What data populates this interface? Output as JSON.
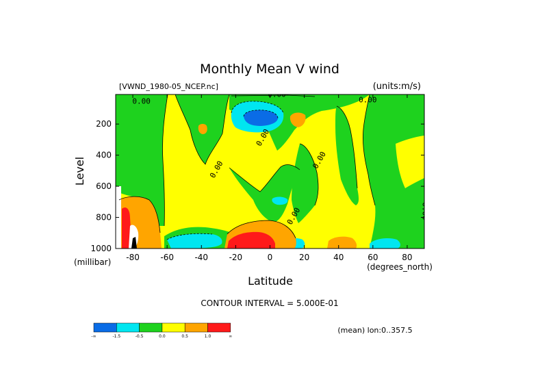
{
  "chart_data": {
    "type": "heatmap",
    "title": "Monthly Mean V wind",
    "dataset_label": "[VWND_1980-05_NCEP.nc]",
    "units_label": "(units:m/s)",
    "xlabel": "Latitude",
    "x_units": "(degrees_north)",
    "ylabel": "Level",
    "y_units": "(millibar)",
    "xlim": [
      -90,
      90
    ],
    "ylim": [
      1000,
      10
    ],
    "y_reversed": true,
    "x_ticks": [
      {
        "value": -80,
        "label": "-80"
      },
      {
        "value": -60,
        "label": "-60"
      },
      {
        "value": -40,
        "label": "-40"
      },
      {
        "value": -20,
        "label": "-20"
      },
      {
        "value": 0,
        "label": "0"
      },
      {
        "value": 20,
        "label": "20"
      },
      {
        "value": 40,
        "label": "40"
      },
      {
        "value": 60,
        "label": "60"
      },
      {
        "value": 80,
        "label": "80"
      }
    ],
    "y_ticks": [
      {
        "value": 200,
        "label": "200"
      },
      {
        "value": 400,
        "label": "400"
      },
      {
        "value": 600,
        "label": "600"
      },
      {
        "value": 800,
        "label": "800"
      },
      {
        "value": 1000,
        "label": "1000"
      }
    ],
    "contour_interval_label": "CONTOUR INTERVAL = 5.000E-01",
    "mean_label": "(mean) lon:0..357.5",
    "contour_labels": [
      {
        "text": "0.00",
        "lat": 4,
        "lev": 25
      },
      {
        "text": "0.00",
        "lat": -75,
        "lev": 70
      },
      {
        "text": "0.00",
        "lat": 57,
        "lev": 60
      },
      {
        "text": "0.00",
        "lat": -3,
        "lev": 295
      },
      {
        "text": "0.00",
        "lat": -30,
        "lev": 500
      },
      {
        "text": "0.00",
        "lat": 30,
        "lev": 440
      },
      {
        "text": "0.00",
        "lat": 15,
        "lev": 800
      },
      {
        "text": "0.00",
        "lat": 89,
        "lev": 760
      }
    ],
    "legend": {
      "bins": [
        {
          "color": "#0a6ce6",
          "label": "-∞"
        },
        {
          "color": "#00e6f0",
          "label": "-1.5"
        },
        {
          "color": "#1ed21e",
          "label": "-0.5"
        },
        {
          "color": "#ffff00",
          "label": "0.0"
        },
        {
          "color": "#ffa500",
          "label": "0.5"
        },
        {
          "color": "#ff1a1a",
          "label": "1.0"
        }
      ],
      "end_label": "∞"
    },
    "regions": [
      {
        "level": "positive",
        "color": "#ffff00",
        "description": "background"
      },
      {
        "level": "negative",
        "color": "#1ed21e",
        "lat": [
          -85,
          -62
        ],
        "lev": [
          20,
          600
        ]
      },
      {
        "level": "negative",
        "color": "#1ed21e",
        "lat": [
          -44,
          -22
        ],
        "lev": [
          20,
          250
        ]
      },
      {
        "level": "negative",
        "color": "#1ed21e",
        "lat": [
          -10,
          40
        ],
        "lev": [
          20,
          120
        ]
      },
      {
        "level": "negative",
        "color": "#1ed21e",
        "lat": [
          -30,
          5
        ],
        "lev": [
          480,
          870
        ]
      },
      {
        "level": "negative",
        "color": "#1ed21e",
        "lat": [
          10,
          30
        ],
        "lev": [
          430,
          760
        ]
      },
      {
        "level": "negative",
        "color": "#1ed21e",
        "lat": [
          40,
          58
        ],
        "lev": [
          20,
          560
        ]
      },
      {
        "level": "negative",
        "color": "#1ed21e",
        "lat": [
          58,
          90
        ],
        "lev": [
          500,
          1000
        ]
      },
      {
        "level": "negative",
        "color": "#1ed21e",
        "lat": [
          -60,
          -25
        ],
        "lev": [
          830,
          1000
        ]
      },
      {
        "level": "negative",
        "color": "#00e6f0",
        "lat": [
          -20,
          -5
        ],
        "lev": [
          80,
          230
        ]
      },
      {
        "level": "negative",
        "color": "#0a6ce6",
        "lat": [
          -15,
          -5
        ],
        "lev": [
          120,
          190
        ]
      },
      {
        "level": "negative",
        "color": "#00e6f0",
        "lat": [
          -58,
          -35
        ],
        "lev": [
          880,
          1000
        ]
      },
      {
        "level": "negative",
        "color": "#00e6f0",
        "lat": [
          58,
          72
        ],
        "lev": [
          950,
          1000
        ]
      },
      {
        "level": "negative",
        "color": "#00e6f0",
        "lat": [
          10,
          20
        ],
        "lev": [
          950,
          1000
        ]
      },
      {
        "level": "positive",
        "color": "#ffa500",
        "lat": [
          -30,
          5
        ],
        "lev": [
          860,
          1000
        ]
      },
      {
        "level": "positive",
        "color": "#ff1a1a",
        "lat": [
          -25,
          0
        ],
        "lev": [
          920,
          1000
        ]
      },
      {
        "level": "positive",
        "color": "#ffa500",
        "lat": [
          -88,
          -67
        ],
        "lev": [
          640,
          1000
        ]
      },
      {
        "level": "positive",
        "color": "#ff1a1a",
        "lat": [
          -88,
          -80
        ],
        "lev": [
          740,
          1000
        ]
      },
      {
        "level": "positive",
        "color": "#ffa500",
        "lat": [
          32,
          45
        ],
        "lev": [
          950,
          1000
        ]
      },
      {
        "level": "positive",
        "color": "#ffa500",
        "lat": [
          -42,
          -38
        ],
        "lev": [
          160,
          230
        ]
      },
      {
        "level": "positive",
        "color": "#ffa500",
        "lat": [
          5,
          15
        ],
        "lev": [
          90,
          190
        ]
      }
    ]
  }
}
